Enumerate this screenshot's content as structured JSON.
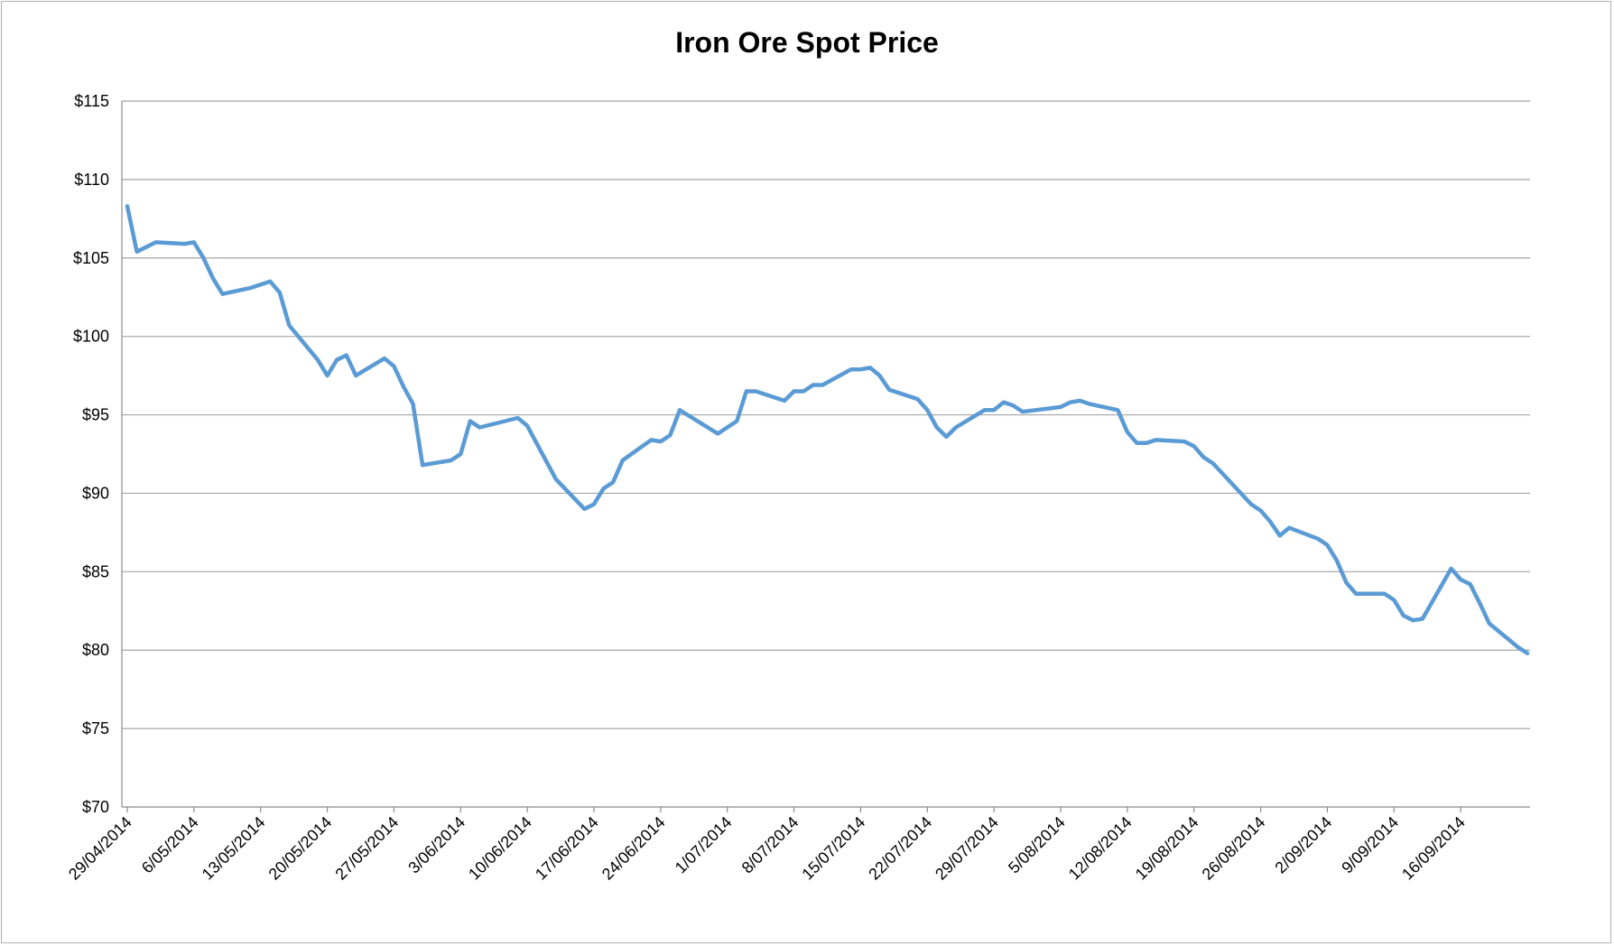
{
  "chart_data": {
    "type": "line",
    "title": "Iron Ore Spot Price",
    "xlabel": "",
    "ylabel": "",
    "ylim": [
      70,
      115
    ],
    "y_ticks": [
      70,
      75,
      80,
      85,
      90,
      95,
      100,
      105,
      110,
      115
    ],
    "y_tick_labels": [
      "$70",
      "$75",
      "$80",
      "$85",
      "$90",
      "$95",
      "$100",
      "$105",
      "$110",
      "$115"
    ],
    "x_tick_labels": [
      "29/04/2014",
      "6/05/2014",
      "13/05/2014",
      "20/05/2014",
      "27/05/2014",
      "3/06/2014",
      "10/06/2014",
      "17/06/2014",
      "24/06/2014",
      "1/07/2014",
      "8/07/2014",
      "15/07/2014",
      "22/07/2014",
      "29/07/2014",
      "5/08/2014",
      "12/08/2014",
      "19/08/2014",
      "26/08/2014",
      "2/09/2014",
      "9/09/2014",
      "16/09/2014"
    ],
    "x_range": [
      "29/04/2014",
      "23/09/2014"
    ],
    "grid": true,
    "legend": "none",
    "series": [
      {
        "color": "#5b9bd5",
        "x": [
          "29/04/2014",
          "30/04/2014",
          "2/05/2014",
          "5/05/2014",
          "6/05/2014",
          "7/05/2014",
          "8/05/2014",
          "9/05/2014",
          "12/05/2014",
          "14/05/2014",
          "15/05/2014",
          "16/05/2014",
          "19/05/2014",
          "20/05/2014",
          "21/05/2014",
          "22/05/2014",
          "23/05/2014",
          "26/05/2014",
          "27/05/2014",
          "28/05/2014",
          "29/05/2014",
          "30/05/2014",
          "2/06/2014",
          "3/06/2014",
          "4/06/2014",
          "5/06/2014",
          "9/06/2014",
          "10/06/2014",
          "13/06/2014",
          "16/06/2014",
          "17/06/2014",
          "18/06/2014",
          "19/06/2014",
          "20/06/2014",
          "23/06/2014",
          "24/06/2014",
          "25/06/2014",
          "26/06/2014",
          "30/06/2014",
          "2/07/2014",
          "3/07/2014",
          "4/07/2014",
          "7/07/2014",
          "8/07/2014",
          "9/07/2014",
          "10/07/2014",
          "11/07/2014",
          "14/07/2014",
          "15/07/2014",
          "16/07/2014",
          "17/07/2014",
          "18/07/2014",
          "21/07/2014",
          "22/07/2014",
          "23/07/2014",
          "24/07/2014",
          "25/07/2014",
          "28/07/2014",
          "29/07/2014",
          "30/07/2014",
          "31/07/2014",
          "1/08/2014",
          "5/08/2014",
          "6/08/2014",
          "7/08/2014",
          "8/08/2014",
          "11/08/2014",
          "12/08/2014",
          "13/08/2014",
          "14/08/2014",
          "15/08/2014",
          "18/08/2014",
          "19/08/2014",
          "20/08/2014",
          "21/08/2014",
          "25/08/2014",
          "26/08/2014",
          "27/08/2014",
          "28/08/2014",
          "29/08/2014",
          "1/09/2014",
          "2/09/2014",
          "3/09/2014",
          "4/09/2014",
          "5/09/2014",
          "8/09/2014",
          "9/09/2014",
          "10/09/2014",
          "11/09/2014",
          "12/09/2014",
          "15/09/2014",
          "16/09/2014",
          "17/09/2014",
          "18/09/2014",
          "19/09/2014",
          "22/09/2014",
          "23/09/2014"
        ],
        "y": [
          108.3,
          105.4,
          106.0,
          105.9,
          106.0,
          105.0,
          103.7,
          102.7,
          103.1,
          103.5,
          102.8,
          100.7,
          98.5,
          97.5,
          98.5,
          98.8,
          97.5,
          98.6,
          98.1,
          96.8,
          95.7,
          91.8,
          92.1,
          92.5,
          94.6,
          94.2,
          94.8,
          94.3,
          90.9,
          89.0,
          89.3,
          90.3,
          90.7,
          92.1,
          93.4,
          93.3,
          93.7,
          95.3,
          93.8,
          94.6,
          96.5,
          96.5,
          95.9,
          96.5,
          96.5,
          96.9,
          96.9,
          97.9,
          97.9,
          98.0,
          97.5,
          96.6,
          96.0,
          95.3,
          94.2,
          93.6,
          94.2,
          95.3,
          95.3,
          95.8,
          95.6,
          95.2,
          95.5,
          95.8,
          95.9,
          95.7,
          95.3,
          93.9,
          93.2,
          93.2,
          93.4,
          93.3,
          93.0,
          92.3,
          91.9,
          89.3,
          88.9,
          88.2,
          87.3,
          87.8,
          87.1,
          86.7,
          85.7,
          84.3,
          83.6,
          83.6,
          83.2,
          82.2,
          81.9,
          82.0,
          85.2,
          84.5,
          84.2,
          83.0,
          81.7,
          80.2,
          79.8
        ]
      }
    ]
  }
}
